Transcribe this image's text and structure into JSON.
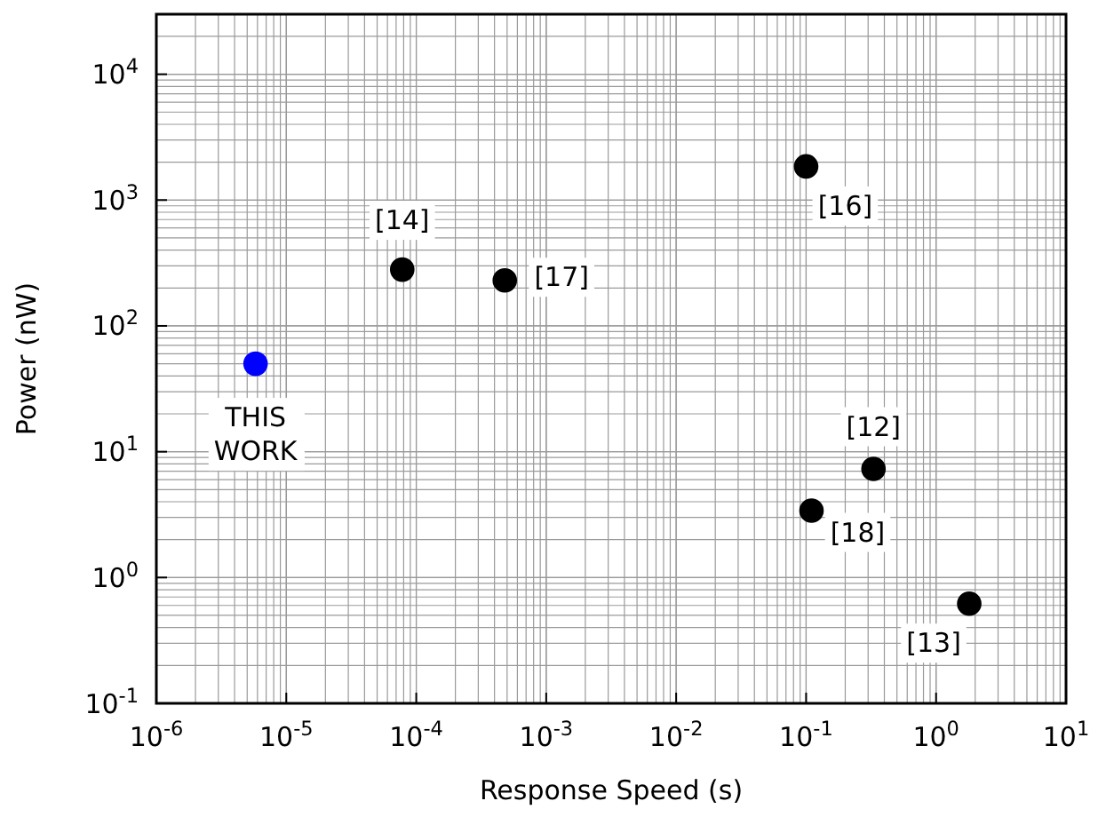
{
  "chart_data": {
    "type": "scatter",
    "xlabel": "Response Speed (s)",
    "ylabel": "Power (nW)",
    "log": "xy",
    "grid": true,
    "marker": "circle",
    "xlim": [
      1e-06,
      10
    ],
    "ylim": [
      0.1,
      30000
    ],
    "xticks": [
      {
        "value": 1e-06,
        "label": "10$^{-6}$"
      },
      {
        "value": 1e-05,
        "label": "10$^{-5}$"
      },
      {
        "value": 0.0001,
        "label": "10$^{-4}$"
      },
      {
        "value": 0.001,
        "label": "10$^{-3}$"
      },
      {
        "value": 0.01,
        "label": "10$^{-2}$"
      },
      {
        "value": 0.1,
        "label": "10$^{-1}$"
      },
      {
        "value": 1,
        "label": "10$^{0}$"
      },
      {
        "value": 10,
        "label": "10$^{1}$"
      }
    ],
    "yticks": [
      {
        "value": 0.1,
        "label": "10$^{-1}$"
      },
      {
        "value": 1,
        "label": "10$^{0}$"
      },
      {
        "value": 10,
        "label": "10$^{1}$"
      },
      {
        "value": 100,
        "label": "10$^{2}$"
      },
      {
        "value": 1000,
        "label": "10$^{3}$"
      },
      {
        "value": 10000,
        "label": "10$^{4}$"
      }
    ],
    "series": [
      {
        "color": "#0000ff",
        "x": [
          5.8e-06
        ],
        "values": [
          50
        ]
      },
      {
        "color": "#000000",
        "x": [
          7.8e-05,
          0.00048,
          0.1,
          0.33,
          0.11,
          1.8
        ],
        "values": [
          280,
          230,
          1850,
          7.3,
          3.4,
          0.62
        ]
      }
    ],
    "annotations": [
      {
        "text": "THIS WORK",
        "x": 5.8e-06,
        "y": 50
      },
      {
        "text": "[14]",
        "x": 7.8e-05,
        "y": 280
      },
      {
        "text": "[17]",
        "x": 0.00048,
        "y": 230
      },
      {
        "text": "[16]",
        "x": 0.1,
        "y": 1850
      },
      {
        "text": "[12]",
        "x": 0.33,
        "y": 7.3
      },
      {
        "text": "[18]",
        "x": 0.11,
        "y": 3.4
      },
      {
        "text": "[13]",
        "x": 1.8,
        "y": 0.62
      }
    ]
  }
}
